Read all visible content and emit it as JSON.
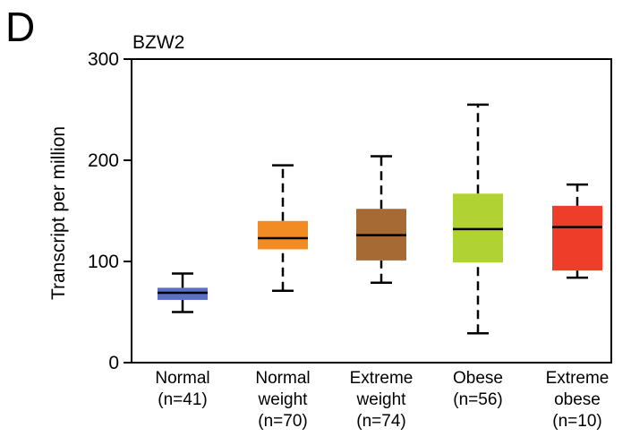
{
  "panel_label": "D",
  "chart_data": {
    "type": "box",
    "title": "BZW2",
    "ylabel": "Transcript per million",
    "xlabel": "",
    "ylim": [
      0,
      300
    ],
    "yticks": [
      0,
      100,
      200,
      300
    ],
    "grid": false,
    "categories": [
      {
        "lines": [
          "Normal",
          "(n=41)"
        ],
        "color": "#5b6fc4",
        "whisker_low": 50,
        "q1": 62,
        "median": 69,
        "q3": 74,
        "whisker_high": 88
      },
      {
        "lines": [
          "Normal",
          "weight",
          "(n=70)"
        ],
        "color": "#f28b24",
        "whisker_low": 71,
        "q1": 112,
        "median": 123,
        "q3": 140,
        "whisker_high": 195
      },
      {
        "lines": [
          "Extreme",
          "weight",
          "(n=74)"
        ],
        "color": "#a66b35",
        "whisker_low": 79,
        "q1": 101,
        "median": 126,
        "q3": 152,
        "whisker_high": 204
      },
      {
        "lines": [
          "Obese",
          "(n=56)"
        ],
        "color": "#b0d233",
        "whisker_low": 29,
        "q1": 99,
        "median": 132,
        "q3": 167,
        "whisker_high": 255
      },
      {
        "lines": [
          "Extreme",
          "obese",
          "(n=10)"
        ],
        "color": "#ee3e29",
        "whisker_low": 84,
        "q1": 91,
        "median": 134,
        "q3": 155,
        "whisker_high": 176
      }
    ]
  }
}
